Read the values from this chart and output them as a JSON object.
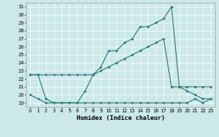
{
  "xlabel": "Humidex (Indice chaleur)",
  "bg_color": "#cce8e8",
  "line_color": "#1a6e6e",
  "grid_color": "#b0d5d5",
  "xlim": [
    -0.5,
    23.5
  ],
  "ylim": [
    18.5,
    31.5
  ],
  "xticks": [
    0,
    1,
    2,
    3,
    4,
    5,
    6,
    7,
    8,
    9,
    10,
    11,
    12,
    13,
    14,
    15,
    16,
    17,
    18,
    19,
    20,
    21,
    22,
    23
  ],
  "yticks": [
    19,
    20,
    21,
    22,
    23,
    24,
    25,
    26,
    27,
    28,
    29,
    30,
    31
  ],
  "series1_x": [
    0,
    1,
    2,
    3,
    4,
    5,
    6,
    7,
    8,
    9,
    10,
    11,
    12,
    13,
    14,
    15,
    16,
    17,
    18,
    19,
    20,
    21,
    22,
    23
  ],
  "series1_y": [
    22.5,
    22.5,
    22.5,
    22.5,
    22.5,
    22.5,
    22.5,
    22.5,
    22.5,
    23.0,
    23.5,
    24.0,
    24.5,
    25.0,
    25.5,
    26.0,
    26.5,
    27.0,
    21.0,
    21.0,
    21.0,
    21.0,
    21.0,
    21.0
  ],
  "series2_x": [
    0,
    1,
    2,
    3,
    4,
    5,
    6,
    7,
    8,
    9,
    10,
    11,
    12,
    13,
    14,
    15,
    16,
    17,
    18,
    19,
    20,
    21,
    22,
    23
  ],
  "series2_y": [
    22.5,
    22.5,
    19.5,
    19.0,
    19.0,
    19.0,
    19.0,
    20.5,
    22.5,
    23.5,
    25.5,
    25.5,
    26.5,
    27.0,
    28.5,
    28.5,
    29.0,
    29.5,
    31.0,
    21.0,
    20.5,
    20.0,
    19.5,
    19.5
  ],
  "series3_x": [
    0,
    1,
    2,
    3,
    4,
    5,
    6,
    7,
    8,
    9,
    10,
    11,
    12,
    13,
    14,
    15,
    16,
    17,
    18,
    19,
    20,
    21,
    22,
    23
  ],
  "series3_y": [
    20.0,
    19.5,
    19.0,
    19.0,
    19.0,
    19.0,
    19.0,
    19.0,
    19.0,
    19.0,
    19.0,
    19.0,
    19.0,
    19.0,
    19.0,
    19.0,
    19.0,
    19.0,
    19.0,
    19.0,
    19.0,
    19.5,
    19.0,
    19.5
  ]
}
